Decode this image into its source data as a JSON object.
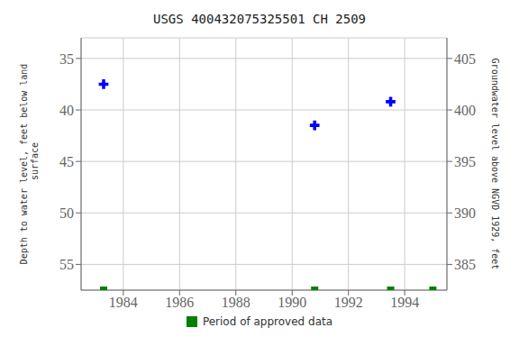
{
  "chart_data": {
    "type": "scatter",
    "title": "USGS 400432075325501 CH  2509",
    "y_label": "Depth to water level, feet below land\n surface",
    "y2_label": "Groundwater level above NGVD 1929, feet",
    "xlim": [
      1982.5,
      1995.5
    ],
    "xticks": [
      1984,
      1986,
      1988,
      1990,
      1992,
      1994
    ],
    "ylim": [
      57.5,
      33.0
    ],
    "yticks": [
      35,
      40,
      45,
      50,
      55
    ],
    "y2lim": [
      382.5,
      407.0
    ],
    "y2ticks": [
      405,
      400,
      395,
      390,
      385
    ],
    "grid": true,
    "series": [
      {
        "color": "#0000ff",
        "marker": "plus",
        "x": [
          1983.3,
          1990.8,
          1993.5
        ],
        "values": [
          37.5,
          41.5,
          39.2
        ]
      },
      {
        "name": "Period of approved data",
        "color": "#008000",
        "marker": "square",
        "x": [
          1983.3,
          1990.8,
          1993.5,
          1995.0
        ],
        "values": [
          57.5,
          57.5,
          57.5,
          57.5
        ]
      }
    ]
  }
}
